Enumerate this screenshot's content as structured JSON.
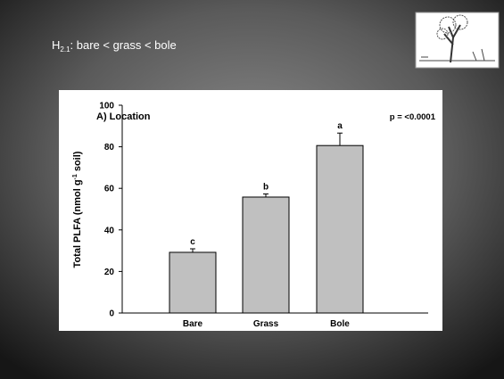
{
  "slide_title": {
    "main": "H",
    "subscript": "2.1",
    "rest": ": bare < grass < bole"
  },
  "chart_data": {
    "type": "bar",
    "title": "A) Location",
    "annotation": "p = <0.0001",
    "y_label": {
      "main": "Total PLFA (nmol g",
      "superscript": "-1",
      "rest": " soil)"
    },
    "categories": [
      "Bare",
      "Grass",
      "Bole"
    ],
    "values": [
      29.2,
      55.8,
      80.6
    ],
    "errors": [
      1.7,
      1.5,
      6.0
    ],
    "letters": [
      "c",
      "b",
      "a"
    ],
    "color": "#c0c0c0",
    "ylim": [
      0,
      100
    ],
    "yticks": [
      0,
      20,
      40,
      60,
      80,
      100
    ]
  }
}
